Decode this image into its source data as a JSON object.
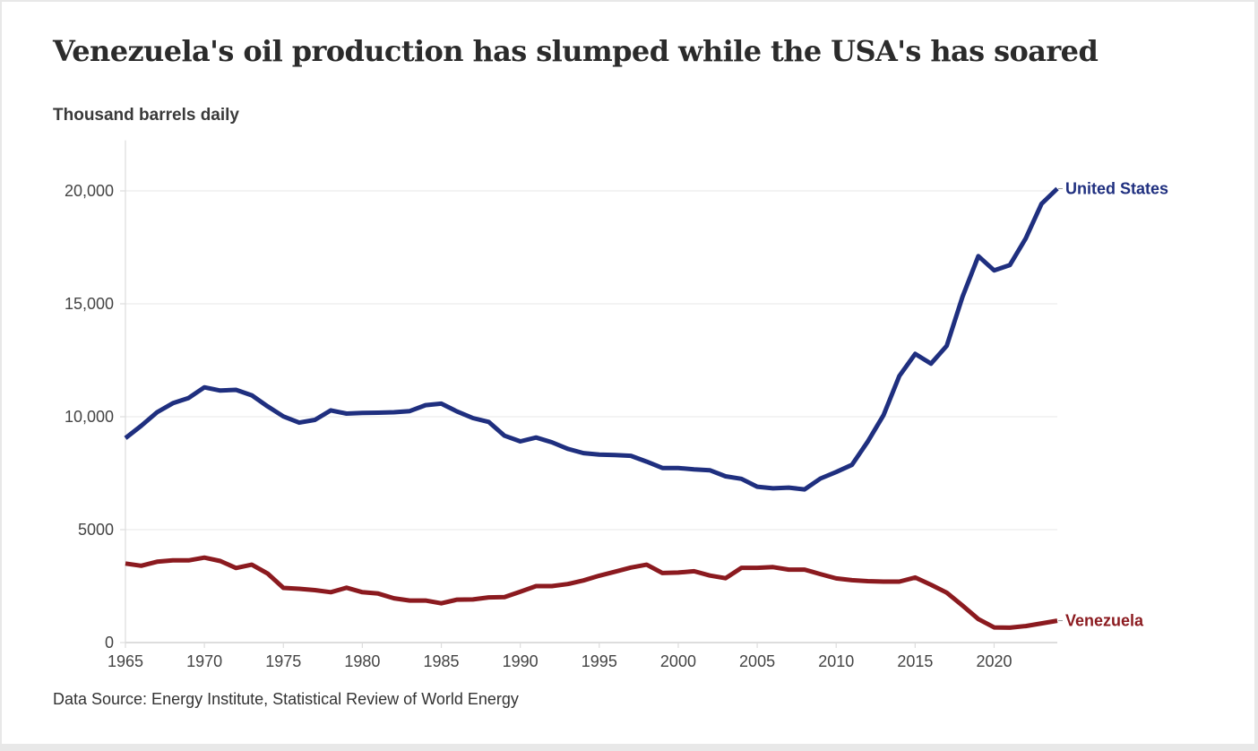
{
  "title": "Venezuela's oil production has slumped while the USA's has soared",
  "subtitle": "Thousand barrels daily",
  "source": "Data Source: Energy Institute, Statistical Review of World Energy",
  "colors": {
    "background_frame": "#e8e8e8",
    "card": "#ffffff",
    "grid": "#ececec",
    "axis": "#dddddd",
    "united_states": "#1f2f7f",
    "venezuela": "#8b1a1f"
  },
  "chart_data": {
    "type": "line",
    "title": "Venezuela's oil production has slumped while the USA's has soared",
    "subtitle": "Thousand barrels daily",
    "xlabel": "",
    "ylabel": "Thousand barrels daily",
    "xlim": [
      1965,
      2024
    ],
    "ylim": [
      0,
      22000
    ],
    "grid": true,
    "legend": "direct-labels-right",
    "x_ticks": [
      1965,
      1970,
      1975,
      1980,
      1985,
      1990,
      1995,
      2000,
      2005,
      2010,
      2015,
      2020
    ],
    "x_tick_labels": [
      "1965",
      "1970",
      "1975",
      "1980",
      "1985",
      "1990",
      "1995",
      "2000",
      "2005",
      "2010",
      "2015",
      "2020"
    ],
    "y_ticks": [
      0,
      5000,
      10000,
      15000,
      20000
    ],
    "y_tick_labels": [
      "0",
      "5000",
      "10,000",
      "15,000",
      "20,000"
    ],
    "x": [
      1965,
      1966,
      1967,
      1968,
      1969,
      1970,
      1971,
      1972,
      1973,
      1974,
      1975,
      1976,
      1977,
      1978,
      1979,
      1980,
      1981,
      1982,
      1983,
      1984,
      1985,
      1986,
      1987,
      1988,
      1989,
      1990,
      1991,
      1992,
      1993,
      1994,
      1995,
      1996,
      1997,
      1998,
      1999,
      2000,
      2001,
      2002,
      2003,
      2004,
      2005,
      2006,
      2007,
      2008,
      2009,
      2010,
      2011,
      2012,
      2013,
      2014,
      2015,
      2016,
      2017,
      2018,
      2019,
      2020,
      2021,
      2022,
      2023,
      2024
    ],
    "series": [
      {
        "name": "United States",
        "color": "#1f2f7f",
        "values": [
          9050,
          9600,
          10200,
          10600,
          10830,
          11300,
          11160,
          11190,
          10950,
          10460,
          10010,
          9740,
          9860,
          10280,
          10140,
          10170,
          10180,
          10200,
          10250,
          10510,
          10580,
          10230,
          9940,
          9770,
          9160,
          8910,
          9080,
          8870,
          8580,
          8390,
          8320,
          8300,
          8270,
          8010,
          7730,
          7730,
          7670,
          7630,
          7360,
          7250,
          6900,
          6830,
          6860,
          6780,
          7260,
          7550,
          7870,
          8900,
          10070,
          11800,
          12780,
          12350,
          13140,
          15310,
          17110,
          16480,
          16720,
          17890,
          19430,
          20100
        ]
      },
      {
        "name": "Venezuela",
        "color": "#8b1a1f",
        "values": [
          3500,
          3400,
          3580,
          3640,
          3640,
          3760,
          3610,
          3300,
          3450,
          3060,
          2420,
          2380,
          2320,
          2230,
          2430,
          2230,
          2170,
          1960,
          1860,
          1860,
          1740,
          1900,
          1910,
          2000,
          2010,
          2250,
          2500,
          2500,
          2590,
          2750,
          2960,
          3140,
          3320,
          3450,
          3080,
          3100,
          3160,
          2970,
          2850,
          3310,
          3310,
          3340,
          3230,
          3230,
          3030,
          2840,
          2760,
          2720,
          2700,
          2700,
          2880,
          2560,
          2210,
          1640,
          1040,
          670,
          660,
          730,
          850,
          970
        ]
      }
    ]
  }
}
